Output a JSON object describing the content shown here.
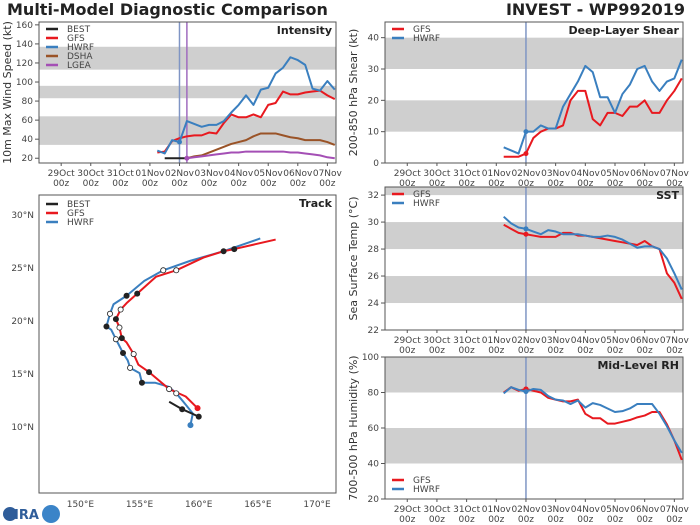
{
  "header": {
    "title": "Multi-Model Diagnostic Comparison",
    "storm": "INVEST - WP992019"
  },
  "logo": "CIRA",
  "colors": {
    "BEST": "#222222",
    "GFS": "#e8191f",
    "HWRF": "#3a7fbf",
    "DSHA": "#9a5327",
    "LGEA": "#a44fb5",
    "band": "#cfcfcf",
    "init_line": "#7f95c4",
    "lgea_line": "#a06cbf"
  },
  "time_axis": {
    "xlim": [
      "2019-10-28T06",
      "2019-11-07T07"
    ],
    "ticks": [
      {
        "date": "2019-10-29T00",
        "label": "29Oct",
        "sub": "00z"
      },
      {
        "date": "2019-10-30T00",
        "label": "30Oct",
        "sub": "00z"
      },
      {
        "date": "2019-10-31T00",
        "label": "31Oct",
        "sub": "00z"
      },
      {
        "date": "2019-11-01T00",
        "label": "01Nov",
        "sub": "00z"
      },
      {
        "date": "2019-11-02T00",
        "label": "02Nov",
        "sub": "00z"
      },
      {
        "date": "2019-11-03T00",
        "label": "03Nov",
        "sub": "00z"
      },
      {
        "date": "2019-11-04T00",
        "label": "04Nov",
        "sub": "00z"
      },
      {
        "date": "2019-11-05T00",
        "label": "05Nov",
        "sub": "00z"
      },
      {
        "date": "2019-11-06T00",
        "label": "06Nov",
        "sub": "00z"
      },
      {
        "date": "2019-11-07T00",
        "label": "07Nov",
        "sub": "00z"
      }
    ],
    "forecast_times": [
      "2019-11-01T06",
      "2019-11-01T12",
      "2019-11-01T18",
      "2019-11-02T00",
      "2019-11-02T06",
      "2019-11-02T12",
      "2019-11-02T18",
      "2019-11-03T00",
      "2019-11-03T06",
      "2019-11-03T12",
      "2019-11-03T18",
      "2019-11-04T00",
      "2019-11-04T06",
      "2019-11-04T12",
      "2019-11-04T18",
      "2019-11-05T00",
      "2019-11-05T06",
      "2019-11-05T12",
      "2019-11-05T18",
      "2019-11-06T00",
      "2019-11-06T06",
      "2019-11-06T12",
      "2019-11-06T18",
      "2019-11-07T00",
      "2019-11-07T06"
    ]
  },
  "chart_data": [
    {
      "type": "line",
      "title": "Intensity",
      "ylabel": "10m Max Wind Speed (kt)",
      "ylim": [
        15,
        163
      ],
      "yticks": [
        20,
        40,
        60,
        80,
        100,
        120,
        140,
        160
      ],
      "bands": [
        [
          34,
          64
        ],
        [
          83,
          96
        ],
        [
          113,
          137
        ]
      ],
      "vlines": [
        {
          "date": "2019-11-02T00",
          "color": "init_line"
        },
        {
          "date": "2019-11-02T06",
          "color": "lgea_line"
        }
      ],
      "legend": "top-left",
      "series": [
        {
          "name": "BEST",
          "times": [
            "2019-11-01T12",
            "2019-11-02T06"
          ],
          "values": [
            20,
            20
          ]
        },
        {
          "name": "GFS",
          "values": [
            26,
            27,
            38,
            41,
            43,
            44,
            44,
            47,
            46,
            57,
            66,
            63,
            63,
            66,
            63,
            76,
            78,
            90,
            87,
            87,
            89,
            90,
            91,
            86,
            82
          ]
        },
        {
          "name": "HWRF",
          "dot_at": "2019-11-02T00",
          "values": [
            28,
            25,
            39,
            37,
            59,
            56,
            53,
            55,
            55,
            59,
            68,
            76,
            86,
            76,
            92,
            94,
            109,
            115,
            126,
            123,
            118,
            93,
            91,
            101,
            92
          ]
        },
        {
          "name": "DSHA",
          "values": [
            null,
            null,
            null,
            null,
            20,
            22,
            23,
            26,
            29,
            32,
            35,
            37,
            39,
            43,
            46,
            46,
            46,
            44,
            42,
            41,
            39,
            39,
            39,
            37,
            34
          ]
        },
        {
          "name": "LGEA",
          "dot_at": "2019-11-02T06",
          "values": [
            null,
            null,
            null,
            null,
            20,
            21,
            22,
            23,
            24,
            25,
            26,
            26,
            27,
            27,
            27,
            27,
            27,
            27,
            26,
            26,
            25,
            24,
            23,
            21,
            20
          ]
        }
      ]
    },
    {
      "type": "line",
      "title": "Deep-Layer Shear",
      "ylabel": "200-850 hPa Shear (kt)",
      "ylim": [
        0,
        45
      ],
      "yticks": [
        0,
        10,
        20,
        30,
        40
      ],
      "bands": [
        [
          10,
          20
        ],
        [
          30,
          40
        ]
      ],
      "vlines": [
        {
          "date": "2019-11-02T00",
          "color": "init_line"
        }
      ],
      "legend": "top-left",
      "series": [
        {
          "name": "GFS",
          "dot_at": "2019-11-02T00",
          "values": [
            2,
            2,
            2,
            3,
            8,
            10,
            11,
            11,
            12,
            20,
            23,
            23,
            14,
            12,
            16,
            16,
            15,
            18,
            18,
            20,
            16,
            16,
            20,
            23,
            27
          ]
        },
        {
          "name": "HWRF",
          "dot_at": "2019-11-02T00",
          "values": [
            5,
            4,
            3,
            10,
            10,
            12,
            11,
            11,
            18,
            22,
            26,
            31,
            29,
            21,
            21,
            16,
            22,
            25,
            30,
            31,
            26,
            23,
            26,
            27,
            33
          ]
        }
      ]
    },
    {
      "type": "line",
      "title": "SST",
      "ylabel": "Sea Surface Temp (°C)",
      "ylim": [
        22,
        32.6
      ],
      "yticks": [
        22,
        24,
        26,
        28,
        30,
        32
      ],
      "bands": [
        [
          24,
          26
        ],
        [
          28,
          30
        ],
        [
          32,
          32.6
        ]
      ],
      "vlines": [
        {
          "date": "2019-11-02T00",
          "color": "init_line"
        }
      ],
      "legend": "top-left",
      "series": [
        {
          "name": "GFS",
          "dot_at": "2019-11-02T00",
          "values": [
            29.8,
            29.5,
            29.2,
            29.1,
            29.0,
            28.9,
            28.9,
            28.9,
            29.2,
            29.2,
            29.0,
            29.0,
            28.9,
            28.8,
            28.7,
            28.6,
            28.5,
            28.4,
            28.3,
            28.6,
            28.2,
            28.0,
            26.2,
            25.5,
            24.3
          ]
        },
        {
          "name": "HWRF",
          "dot_at": "2019-11-02T00",
          "values": [
            30.4,
            29.9,
            29.6,
            29.5,
            29.3,
            29.1,
            29.4,
            29.3,
            29.1,
            29.1,
            29.1,
            29.0,
            28.9,
            28.9,
            29.0,
            28.9,
            28.7,
            28.4,
            28.1,
            28.2,
            28.2,
            28.0,
            27.3,
            26.2,
            25.0
          ]
        }
      ]
    },
    {
      "type": "line",
      "title": "Mid-Level RH",
      "ylabel": "700-500 hPa Humidity (%)",
      "ylim": [
        20,
        100
      ],
      "yticks": [
        20,
        40,
        60,
        80,
        100
      ],
      "bands": [
        [
          40,
          60
        ],
        [
          80,
          100
        ]
      ],
      "vlines": [
        {
          "date": "2019-11-02T00",
          "color": "init_line"
        }
      ],
      "legend": "bottom-left",
      "series": [
        {
          "name": "GFS",
          "dot_at": "2019-11-02T00",
          "values": [
            80,
            83,
            81,
            82,
            81,
            80,
            77,
            76,
            75,
            75,
            76,
            68,
            65.5,
            65.5,
            62.5,
            62.5,
            63.5,
            64.5,
            66,
            67,
            69,
            69,
            62,
            53,
            42
          ]
        },
        {
          "name": "HWRF",
          "dot_at": "2019-11-02T00",
          "values": [
            79.5,
            83,
            81.5,
            80.5,
            82,
            81.5,
            78,
            76,
            75.5,
            73.5,
            75.5,
            71.5,
            74,
            73,
            71,
            69,
            69.5,
            71,
            73.5,
            73.5,
            73.5,
            68,
            61,
            53,
            46
          ]
        }
      ]
    },
    {
      "type": "line",
      "title": "Track",
      "xlim": [
        146.5,
        171.6
      ],
      "ylim": [
        3.8,
        31.9
      ],
      "xticks": [
        150,
        155,
        160,
        165,
        170
      ],
      "xtick_labels": [
        "150°E",
        "155°E",
        "160°E",
        "165°E",
        "170°E"
      ],
      "yticks": [
        10,
        15,
        20,
        25,
        30
      ],
      "ytick_labels": [
        "10°N",
        "15°N",
        "20°N",
        "25°N",
        "30°N"
      ],
      "legend": "top-left",
      "series": [
        {
          "name": "BEST",
          "lon": [
            157.5,
            158.6,
            160.0
          ],
          "lat": [
            12.4,
            11.7,
            11.0
          ],
          "markers": [
            {
              "lon": 158.6,
              "lat": 11.7,
              "filled": true
            },
            {
              "lon": 160.0,
              "lat": 11.0,
              "filled": true
            }
          ]
        },
        {
          "name": "GFS",
          "lon": [
            159.9,
            158.9,
            158.1,
            157.5,
            155.8,
            154.9,
            154.5,
            153.9,
            153.5,
            153.3,
            153.0,
            153.4,
            153.9,
            154.8,
            156.4,
            158.1,
            160.4,
            162.1,
            163.0,
            166.5
          ],
          "lat": [
            11.8,
            12.9,
            13.3,
            13.6,
            15.2,
            15.9,
            16.9,
            18.0,
            18.4,
            19.4,
            20.2,
            21.1,
            21.7,
            22.6,
            24.2,
            24.8,
            26.0,
            26.6,
            26.8,
            27.7
          ],
          "start": {
            "lon": 159.9,
            "lat": 11.8
          },
          "markers": [
            {
              "lon": 157.5,
              "lat": 13.6,
              "filled": false
            },
            {
              "lon": 155.8,
              "lat": 15.2,
              "filled": true
            },
            {
              "lon": 154.5,
              "lat": 16.9,
              "filled": false
            },
            {
              "lon": 153.5,
              "lat": 18.4,
              "filled": true
            },
            {
              "lon": 153.3,
              "lat": 19.4,
              "filled": false
            },
            {
              "lon": 153.0,
              "lat": 20.2,
              "filled": true
            },
            {
              "lon": 153.4,
              "lat": 21.1,
              "filled": false
            },
            {
              "lon": 154.8,
              "lat": 22.6,
              "filled": true
            },
            {
              "lon": 158.1,
              "lat": 24.8,
              "filled": false
            },
            {
              "lon": 163.0,
              "lat": 26.8,
              "filled": true
            }
          ]
        },
        {
          "name": "HWRF",
          "lon": [
            159.3,
            159.5,
            158.7,
            158.1,
            157.5,
            156.3,
            155.2,
            155.0,
            154.2,
            154.0,
            153.6,
            153.0,
            152.6,
            152.2,
            152.5,
            152.8,
            153.9,
            155.4,
            157.0,
            159.3,
            162.1,
            165.2
          ],
          "lat": [
            10.2,
            11.3,
            12.4,
            13.2,
            13.8,
            14.2,
            14.2,
            15.1,
            15.6,
            16.3,
            17.0,
            18.3,
            19.2,
            19.5,
            20.7,
            21.6,
            22.4,
            23.8,
            24.8,
            25.7,
            26.6,
            27.8
          ],
          "start": {
            "lon": 159.3,
            "lat": 10.2
          },
          "markers": [
            {
              "lon": 158.1,
              "lat": 13.2,
              "filled": false
            },
            {
              "lon": 155.2,
              "lat": 14.2,
              "filled": true
            },
            {
              "lon": 154.2,
              "lat": 15.6,
              "filled": false
            },
            {
              "lon": 153.6,
              "lat": 17.0,
              "filled": true
            },
            {
              "lon": 153.0,
              "lat": 18.3,
              "filled": false
            },
            {
              "lon": 152.2,
              "lat": 19.5,
              "filled": true
            },
            {
              "lon": 152.5,
              "lat": 20.7,
              "filled": false
            },
            {
              "lon": 153.9,
              "lat": 22.4,
              "filled": true
            },
            {
              "lon": 157.0,
              "lat": 24.8,
              "filled": false
            },
            {
              "lon": 162.1,
              "lat": 26.6,
              "filled": true
            }
          ]
        }
      ]
    }
  ]
}
